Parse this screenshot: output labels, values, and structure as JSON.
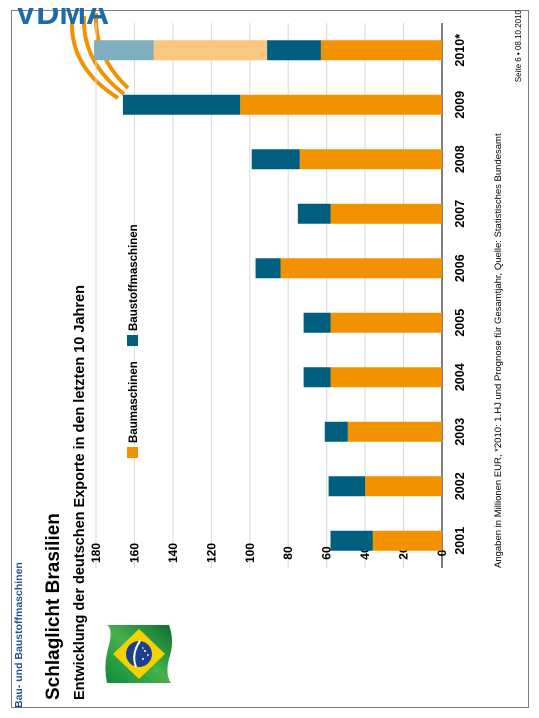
{
  "header": {
    "brand": "Bau- und Baustoffmaschinen",
    "title": "Schlaglicht Brasilien",
    "subtitle": "Entwicklung der deutschen Exporte in den letzten 10 Jahren"
  },
  "logo": {
    "text": "VDMA"
  },
  "footer": {
    "footnote": "Angaben in Millionen EUR, *2010: 1.HJ und Prognose für Gesamtjahr, Quelle: Statistisches Bundesamt",
    "page": "Seite 6 • 08.10.2010"
  },
  "colors": {
    "baumaschinen": "#f39200",
    "baustoffmaschinen": "#005f7f",
    "baumaschinen_forecast": "#f9c77f",
    "baustoffmaschinen_forecast": "#7fafbf",
    "grid": "#d9d9d9"
  },
  "icons": {
    "flag": "brazil-flag-icon",
    "logo": "vdma-logo-icon"
  },
  "chart_data": {
    "type": "bar",
    "stacked": true,
    "categories": [
      "2001",
      "2002",
      "2003",
      "2004",
      "2005",
      "2006",
      "2007",
      "2008",
      "2009",
      "2010*"
    ],
    "series": [
      {
        "name": "Baumaschinen",
        "values": [
          36,
          40,
          49,
          58,
          58,
          84,
          58,
          74,
          105,
          63
        ]
      },
      {
        "name": "Baustoffmaschinen",
        "values": [
          22,
          19,
          12,
          14,
          14,
          13,
          17,
          25,
          61,
          28
        ]
      }
    ],
    "forecast_2010": {
      "baumaschinen": 59,
      "baustoffmaschinen": 31
    },
    "ylim": [
      0,
      180
    ],
    "yticks": [
      0,
      20,
      40,
      60,
      80,
      100,
      120,
      140,
      160,
      180
    ],
    "grid": true,
    "legend": "top"
  }
}
